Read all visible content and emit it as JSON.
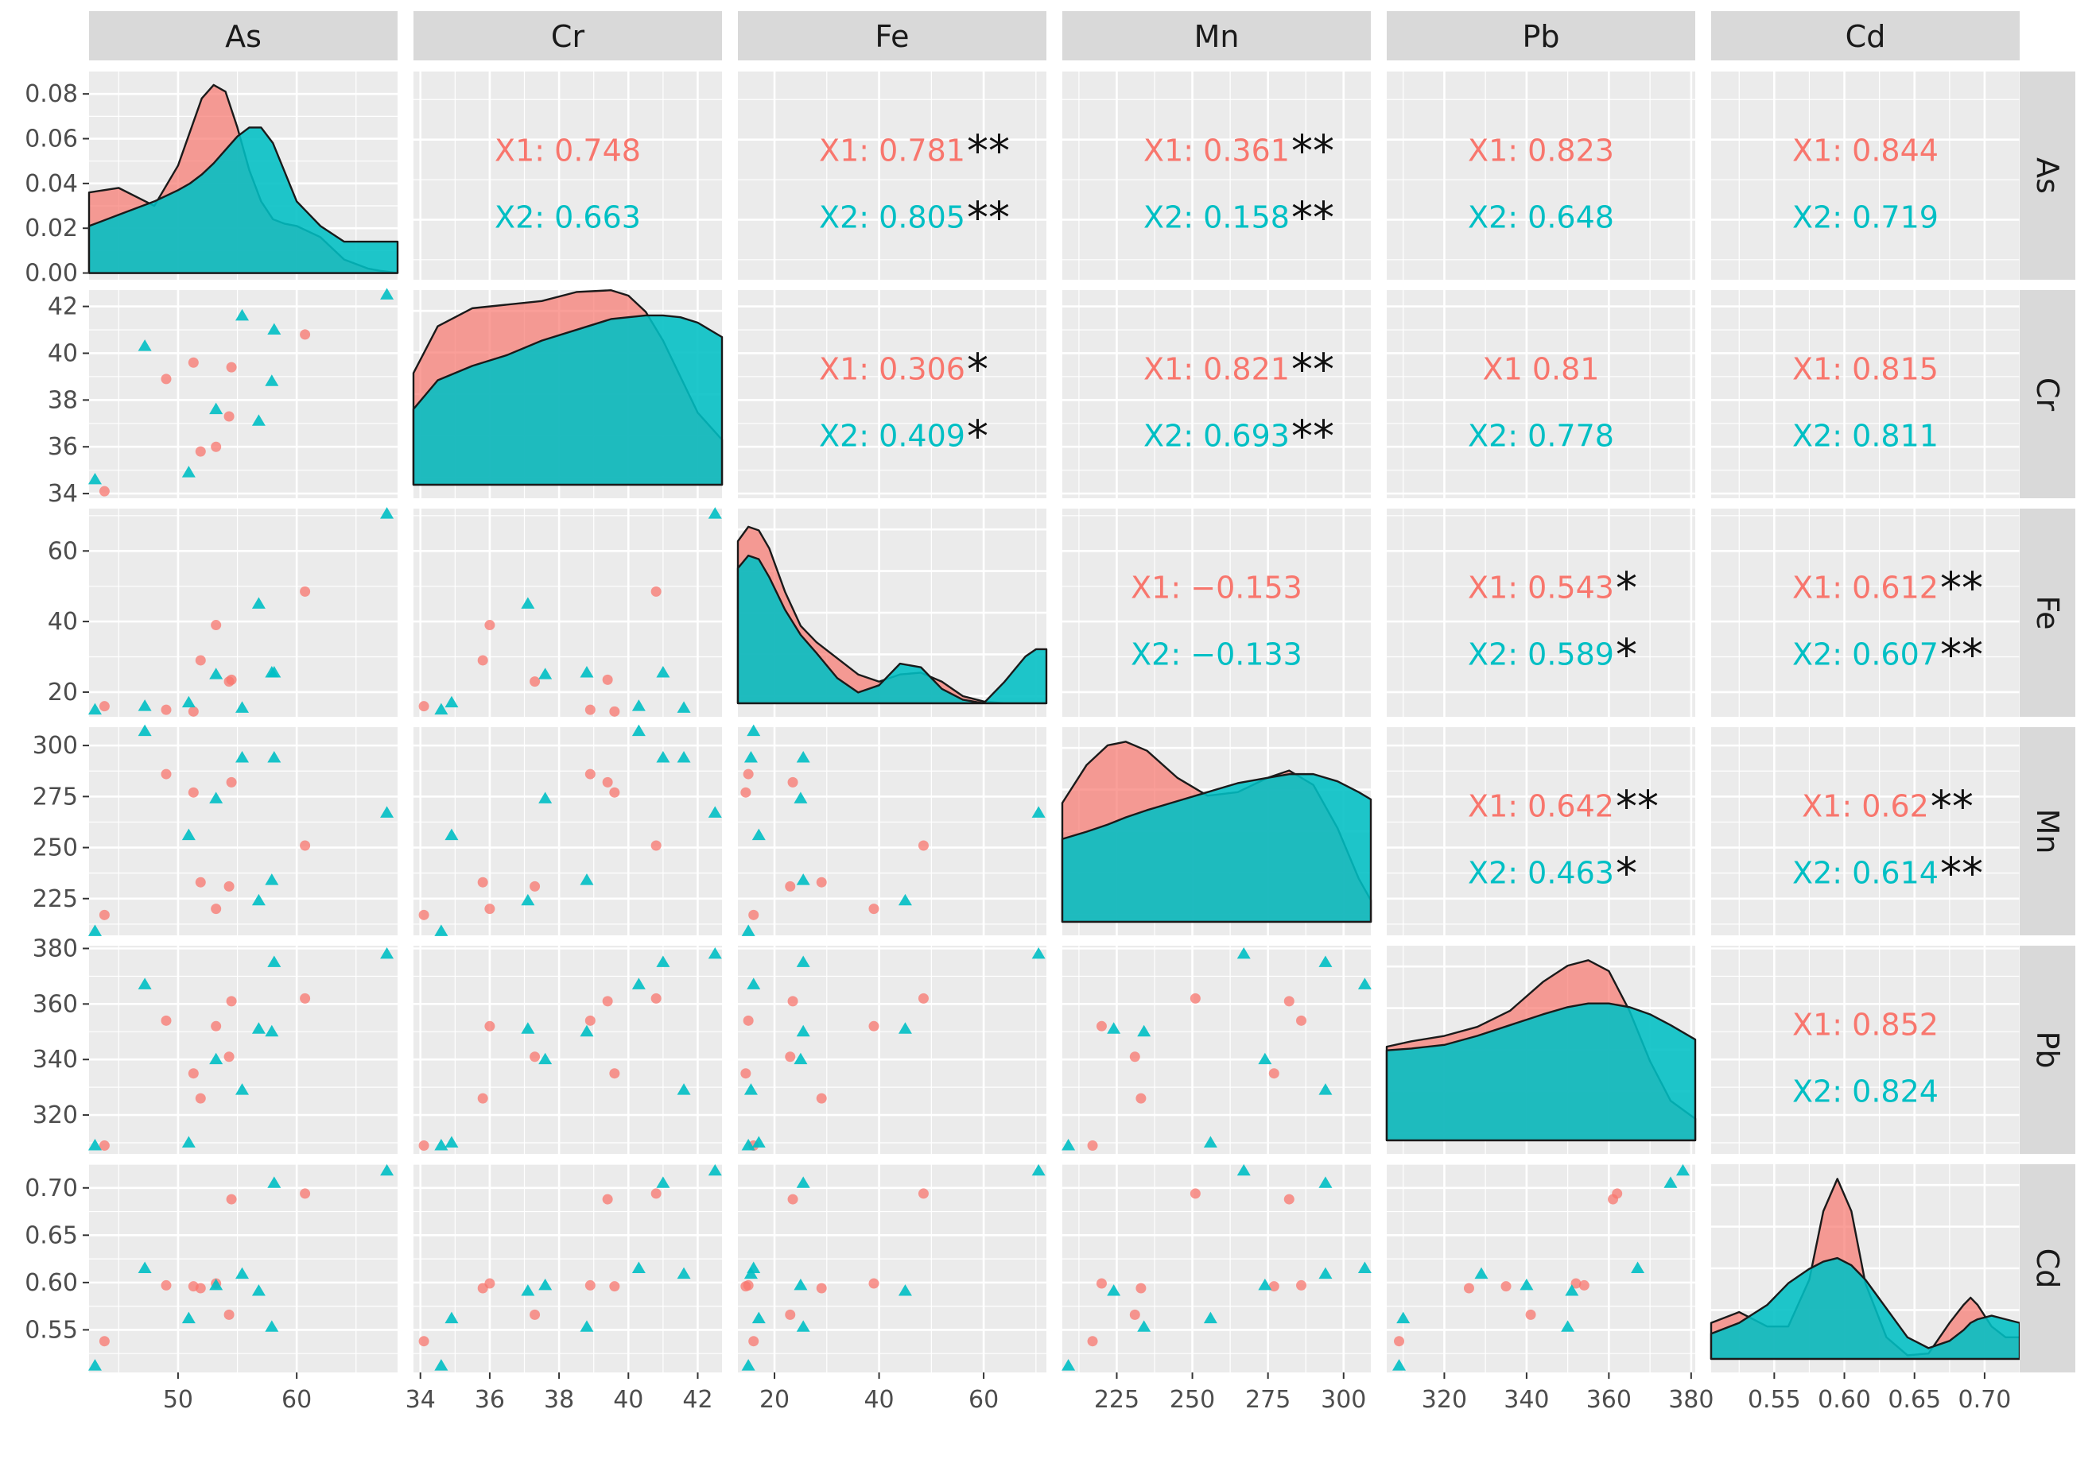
{
  "chart_data": {
    "type": "scatter",
    "variables": [
      "As",
      "Cr",
      "Fe",
      "Mn",
      "Pb",
      "Cd"
    ],
    "colors": {
      "X1": "#F8766D",
      "X2": "#00BFC4",
      "panel_bg": "#EBEBEB",
      "strip_bg": "#D9D9D9"
    },
    "axes": {
      "As": {
        "range": [
          42.5,
          68.5
        ],
        "ticks": [
          50,
          60
        ],
        "tick_labels": [
          "50",
          "60"
        ]
      },
      "Cr": {
        "range": [
          33.8,
          42.7
        ],
        "ticks": [
          34,
          36,
          38,
          40,
          42
        ],
        "tick_labels": [
          "34",
          "36",
          "38",
          "40",
          "42"
        ]
      },
      "Fe": {
        "range": [
          13,
          72
        ],
        "ticks": [
          20,
          40,
          60
        ],
        "tick_labels": [
          "20",
          "40",
          "60"
        ]
      },
      "Mn": {
        "range": [
          207,
          309
        ],
        "ticks": [
          225,
          250,
          275,
          300
        ],
        "tick_labels": [
          "225",
          "250",
          "275",
          "300"
        ]
      },
      "Pb": {
        "range": [
          306,
          381
        ],
        "ticks": [
          320,
          340,
          360,
          380
        ],
        "tick_labels": [
          "320",
          "340",
          "360",
          "380"
        ]
      },
      "Cd": {
        "range": [
          0.505,
          0.725
        ],
        "ticks": [
          0.55,
          0.6,
          0.65,
          0.7
        ],
        "tick_labels": [
          "0.55",
          "0.60",
          "0.65",
          "0.70"
        ]
      }
    },
    "density_y_axis": {
      "range": [
        -0.003,
        0.09
      ],
      "ticks": [
        0,
        0.02,
        0.04,
        0.06,
        0.08
      ],
      "tick_labels": [
        "0.00",
        "0.02",
        "0.04",
        "0.06",
        "0.08"
      ]
    },
    "series": [
      {
        "name": "X1",
        "points": [
          {
            "As": 43.8,
            "Cr": 34.1,
            "Fe": 16,
            "Mn": 217,
            "Pb": 309,
            "Cd": 0.538
          },
          {
            "As": 49,
            "Cr": 38.9,
            "Fe": 15,
            "Mn": 286,
            "Pb": 354,
            "Cd": 0.597
          },
          {
            "As": 51.3,
            "Cr": 39.6,
            "Fe": 14.5,
            "Mn": 277,
            "Pb": 335,
            "Cd": 0.596
          },
          {
            "As": 51.9,
            "Cr": 35.8,
            "Fe": 29,
            "Mn": 233,
            "Pb": 326,
            "Cd": 0.594
          },
          {
            "As": 53.2,
            "Cr": 36,
            "Fe": 39,
            "Mn": 220,
            "Pb": 352,
            "Cd": 0.599
          },
          {
            "As": 54.3,
            "Cr": 37.3,
            "Fe": 23,
            "Mn": 231,
            "Pb": 341,
            "Cd": 0.566
          },
          {
            "As": 54.5,
            "Cr": 39.4,
            "Fe": 23.5,
            "Mn": 282,
            "Pb": 361,
            "Cd": 0.688
          },
          {
            "As": 60.7,
            "Cr": 40.8,
            "Fe": 48.5,
            "Mn": 251,
            "Pb": 362,
            "Cd": 0.694
          }
        ]
      },
      {
        "name": "X2",
        "points": [
          {
            "As": 43,
            "Cr": 34.6,
            "Fe": 15,
            "Mn": 209,
            "Pb": 309,
            "Cd": 0.512
          },
          {
            "As": 47.2,
            "Cr": 40.3,
            "Fe": 16,
            "Mn": 307,
            "Pb": 367,
            "Cd": 0.615
          },
          {
            "As": 50.9,
            "Cr": 34.9,
            "Fe": 17,
            "Mn": 256,
            "Pb": 310,
            "Cd": 0.562
          },
          {
            "As": 53.2,
            "Cr": 37.6,
            "Fe": 25,
            "Mn": 274,
            "Pb": 340,
            "Cd": 0.597
          },
          {
            "As": 55.4,
            "Cr": 41.6,
            "Fe": 15.5,
            "Mn": 294,
            "Pb": 329,
            "Cd": 0.609
          },
          {
            "As": 56.8,
            "Cr": 37.1,
            "Fe": 45,
            "Mn": 224,
            "Pb": 351,
            "Cd": 0.591
          },
          {
            "As": 57.9,
            "Cr": 38.8,
            "Fe": 25.5,
            "Mn": 234,
            "Pb": 350,
            "Cd": 0.553
          },
          {
            "As": 58.1,
            "Cr": 41,
            "Fe": 25.5,
            "Mn": 294,
            "Pb": 375,
            "Cd": 0.705
          },
          {
            "As": 67.6,
            "Cr": 42.5,
            "Fe": 70.5,
            "Mn": 267,
            "Pb": 378,
            "Cd": 0.718
          }
        ]
      }
    ],
    "densities": {
      "As": {
        "x": [
          42.5,
          45,
          48,
          50,
          51,
          52,
          53,
          54,
          55,
          56,
          57,
          58,
          59,
          60,
          62,
          64,
          66,
          67,
          68.5
        ],
        "X1": [
          0.036,
          0.038,
          0.03,
          0.048,
          0.063,
          0.078,
          0.084,
          0.081,
          0.065,
          0.046,
          0.032,
          0.024,
          0.022,
          0.021,
          0.016,
          0.006,
          0.002,
          0.001,
          0.0
        ],
        "X2": [
          0.021,
          0.026,
          0.032,
          0.037,
          0.04,
          0.044,
          0.049,
          0.055,
          0.061,
          0.065,
          0.065,
          0.058,
          0.045,
          0.032,
          0.021,
          0.014,
          0.014,
          0.014,
          0.014
        ]
      },
      "Cr": {
        "x": [
          33.8,
          34.5,
          35.5,
          36.5,
          37.5,
          38.5,
          39.5,
          40,
          40.5,
          41,
          41.5,
          42,
          42.7
        ],
        "X1": [
          0.62,
          0.88,
          0.98,
          1.0,
          1.02,
          1.07,
          1.08,
          1.05,
          0.96,
          0.8,
          0.6,
          0.4,
          0.25
        ],
        "X2": [
          0.42,
          0.58,
          0.66,
          0.72,
          0.8,
          0.86,
          0.92,
          0.93,
          0.94,
          0.94,
          0.93,
          0.9,
          0.82
        ]
      },
      "Fe": {
        "x": [
          13,
          15,
          17,
          19,
          22,
          25,
          28,
          32,
          36,
          40,
          44,
          48,
          52,
          56,
          60,
          64,
          68,
          70,
          72
        ],
        "X1": [
          0.9,
          0.98,
          0.96,
          0.86,
          0.62,
          0.43,
          0.34,
          0.25,
          0.16,
          0.12,
          0.16,
          0.17,
          0.12,
          0.04,
          0.01,
          0.0,
          0.0,
          0.0,
          0.0
        ],
        "X2": [
          0.75,
          0.82,
          0.8,
          0.7,
          0.52,
          0.38,
          0.28,
          0.14,
          0.06,
          0.1,
          0.22,
          0.2,
          0.08,
          0.02,
          0.0,
          0.12,
          0.26,
          0.3,
          0.3
        ]
      },
      "Mn": {
        "x": [
          207,
          215,
          222,
          228,
          235,
          245,
          255,
          265,
          275,
          282,
          290,
          298,
          305,
          309
        ],
        "X1": [
          0.66,
          0.87,
          0.98,
          1.0,
          0.95,
          0.8,
          0.7,
          0.72,
          0.8,
          0.84,
          0.76,
          0.52,
          0.24,
          0.12
        ],
        "X2": [
          0.46,
          0.5,
          0.54,
          0.58,
          0.62,
          0.67,
          0.72,
          0.77,
          0.8,
          0.82,
          0.82,
          0.78,
          0.72,
          0.68
        ]
      },
      "Pb": {
        "x": [
          306,
          312,
          320,
          328,
          336,
          344,
          350,
          355,
          360,
          365,
          370,
          375,
          381
        ],
        "X1": [
          0.52,
          0.55,
          0.58,
          0.63,
          0.72,
          0.88,
          0.97,
          1.0,
          0.94,
          0.72,
          0.44,
          0.22,
          0.12
        ],
        "X2": [
          0.5,
          0.51,
          0.53,
          0.58,
          0.64,
          0.7,
          0.74,
          0.76,
          0.76,
          0.74,
          0.7,
          0.64,
          0.56
        ]
      },
      "Cd": {
        "x": [
          0.505,
          0.525,
          0.545,
          0.56,
          0.575,
          0.585,
          0.595,
          0.605,
          0.615,
          0.63,
          0.645,
          0.66,
          0.675,
          0.685,
          0.69,
          0.695,
          0.705,
          0.715,
          0.725
        ],
        "X1": [
          0.2,
          0.26,
          0.18,
          0.18,
          0.44,
          0.82,
          1.0,
          0.82,
          0.42,
          0.12,
          0.02,
          0.03,
          0.2,
          0.3,
          0.34,
          0.3,
          0.18,
          0.12,
          0.12
        ],
        "X2": [
          0.14,
          0.2,
          0.3,
          0.42,
          0.5,
          0.54,
          0.56,
          0.52,
          0.44,
          0.28,
          0.12,
          0.06,
          0.1,
          0.16,
          0.2,
          0.22,
          0.24,
          0.22,
          0.2
        ]
      }
    },
    "correlations": [
      {
        "row": "As",
        "col": "Cr",
        "X1": "X1: 0.748",
        "X1_sig": "",
        "X2": "X2: 0.663",
        "X2_sig": ""
      },
      {
        "row": "As",
        "col": "Fe",
        "X1": "X1: 0.781",
        "X1_sig": "**",
        "X2": "X2: 0.805",
        "X2_sig": "**"
      },
      {
        "row": "As",
        "col": "Mn",
        "X1": "X1: 0.361",
        "X1_sig": "**",
        "X2": "X2: 0.158",
        "X2_sig": "**"
      },
      {
        "row": "As",
        "col": "Pb",
        "X1": "X1: 0.823",
        "X1_sig": "",
        "X2": "X2: 0.648",
        "X2_sig": ""
      },
      {
        "row": "As",
        "col": "Cd",
        "X1": "X1: 0.844",
        "X1_sig": "",
        "X2": "X2: 0.719",
        "X2_sig": ""
      },
      {
        "row": "Cr",
        "col": "Fe",
        "X1": "X1: 0.306",
        "X1_sig": "*",
        "X2": "X2: 0.409",
        "X2_sig": "*"
      },
      {
        "row": "Cr",
        "col": "Mn",
        "X1": "X1: 0.821",
        "X1_sig": "**",
        "X2": "X2: 0.693",
        "X2_sig": "**"
      },
      {
        "row": "Cr",
        "col": "Pb",
        "X1": "X1 0.81",
        "X1_sig": "",
        "X2": "X2: 0.778",
        "X2_sig": ""
      },
      {
        "row": "Cr",
        "col": "Cd",
        "X1": "X1: 0.815",
        "X1_sig": "",
        "X2": "X2: 0.811",
        "X2_sig": ""
      },
      {
        "row": "Fe",
        "col": "Mn",
        "X1": "X1: −0.153",
        "X1_sig": "",
        "X2": "X2: −0.133",
        "X2_sig": ""
      },
      {
        "row": "Fe",
        "col": "Pb",
        "X1": "X1: 0.543",
        "X1_sig": "*",
        "X2": "X2: 0.589",
        "X2_sig": "*"
      },
      {
        "row": "Fe",
        "col": "Cd",
        "X1": "X1: 0.612",
        "X1_sig": "**",
        "X2": "X2: 0.607",
        "X2_sig": "**"
      },
      {
        "row": "Mn",
        "col": "Pb",
        "X1": "X1: 0.642",
        "X1_sig": "**",
        "X2": "X2: 0.463",
        "X2_sig": "*"
      },
      {
        "row": "Mn",
        "col": "Cd",
        "X1": "X1: 0.62",
        "X1_sig": "**",
        "X2": "X2: 0.614",
        "X2_sig": "**"
      },
      {
        "row": "Pb",
        "col": "Cd",
        "X1": "X1: 0.852",
        "X1_sig": "",
        "X2": "X2: 0.824",
        "X2_sig": ""
      }
    ]
  }
}
